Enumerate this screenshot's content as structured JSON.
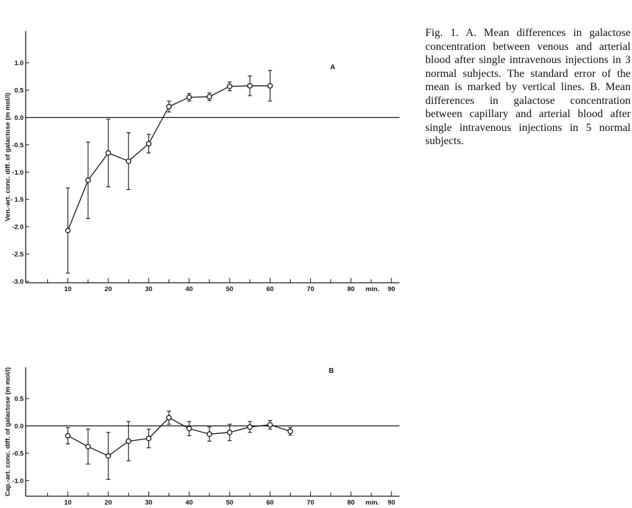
{
  "caption": "Fig. 1. A. Mean differences in galactose concentration between venous and arterial blood after single intravenous injections in 3 normal subjects. The standard error of the mean is marked by vertical lines. B. Mean differences in galactose concentration between capillary and arterial blood after single intravenous injections in 5 normal subjects.",
  "chart_data": [
    {
      "type": "line",
      "panel": "A",
      "ylabel": "Ven.-art. conc. diff. of galactose (m mol/l)",
      "xlabel": "min.",
      "xlim": [
        0,
        92
      ],
      "ylim": [
        -3.0,
        1.5
      ],
      "x_ticks": [
        10,
        20,
        30,
        40,
        50,
        60,
        70,
        80,
        90
      ],
      "x_tick_labels": [
        "10",
        "20",
        "30",
        "40",
        "50",
        "60",
        "70",
        "80",
        "90"
      ],
      "y_ticks": [
        1.0,
        0.5,
        0.0,
        -0.5,
        -1.0,
        -1.5,
        -2.0,
        -2.5,
        -3.0
      ],
      "y_tick_labels": [
        "1.0",
        "0.5",
        "0.0",
        "-0.5",
        "-1.0",
        "- 1.5",
        "-2.0",
        "-2.5",
        "-3.0"
      ],
      "zero_line": true,
      "series": [
        {
          "x": [
            10,
            15,
            20,
            25,
            30,
            35,
            40,
            45,
            50,
            55,
            60
          ],
          "y": [
            -2.07,
            -1.15,
            -0.65,
            -0.8,
            -0.48,
            0.2,
            0.37,
            0.38,
            0.57,
            0.58,
            0.58
          ],
          "err": [
            0.78,
            0.7,
            0.62,
            0.52,
            0.17,
            0.1,
            0.07,
            0.07,
            0.08,
            0.18,
            0.28
          ]
        }
      ]
    },
    {
      "type": "line",
      "panel": "B",
      "ylabel": "Cap.-art. conc. diff. of galactose (m mol/l)",
      "xlabel": "min.",
      "xlim": [
        0,
        92
      ],
      "ylim": [
        -1.3,
        1.0
      ],
      "x_ticks": [
        10,
        20,
        30,
        40,
        50,
        60,
        70,
        80,
        90
      ],
      "x_tick_labels": [
        "10",
        "20",
        "30",
        "40",
        "50",
        "60",
        "70",
        "80",
        "90"
      ],
      "y_ticks": [
        0.5,
        0.0,
        -0.5,
        -1.0
      ],
      "y_tick_labels": [
        "0.5",
        "0.0",
        "-0.5",
        "-1.0"
      ],
      "zero_line": true,
      "series": [
        {
          "x": [
            10,
            15,
            20,
            25,
            30,
            35,
            40,
            45,
            50,
            55,
            60,
            65
          ],
          "y": [
            -0.18,
            -0.38,
            -0.55,
            -0.28,
            -0.23,
            0.15,
            -0.05,
            -0.15,
            -0.12,
            -0.02,
            0.02,
            -0.1
          ],
          "err": [
            0.15,
            0.32,
            0.43,
            0.36,
            0.17,
            0.12,
            0.13,
            0.13,
            0.15,
            0.1,
            0.08,
            0.07
          ]
        }
      ]
    }
  ]
}
